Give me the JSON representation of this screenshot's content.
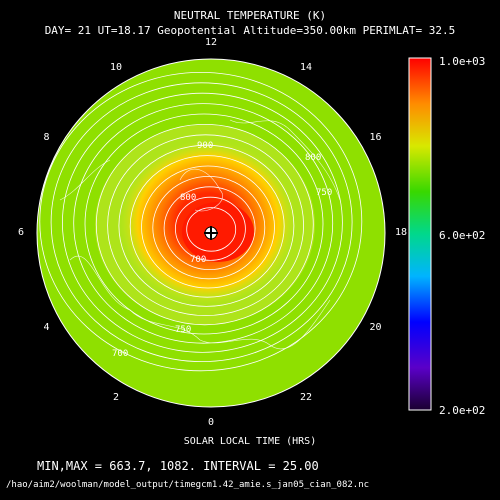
{
  "header": {
    "title": "NEUTRAL TEMPERATURE (K)",
    "subtitle": "DAY= 21 UT=18.17 Geopotential Altitude=350.00km PERIMLAT= 32.5"
  },
  "chart_data": {
    "type": "heatmap",
    "projection": "polar (north pole)",
    "title": "NEUTRAL TEMPERATURE (K)",
    "xlabel": "SOLAR LOCAL TIME (HRS)",
    "hour_labels": [
      "0",
      "2",
      "4",
      "6",
      "8",
      "10",
      "12",
      "14",
      "16",
      "18",
      "20",
      "22"
    ],
    "colorbar": {
      "max_label": "1.0e+03",
      "mid_label": "6.0e+02",
      "min_label": "2.0e+02",
      "range": [
        200,
        1000
      ]
    },
    "contour_labels": [
      "900",
      "800",
      "750",
      "700",
      "800",
      "750",
      "700"
    ],
    "min": 663.7,
    "max": 1082,
    "interval": 25.0
  },
  "footer": {
    "stats": "MIN,MAX =        663.7,       1082.  INTERVAL =       25.00",
    "path": "/hao/aim2/woolman/model_output/timegcm1.42_amie.s_jan05_cian_082.nc"
  }
}
